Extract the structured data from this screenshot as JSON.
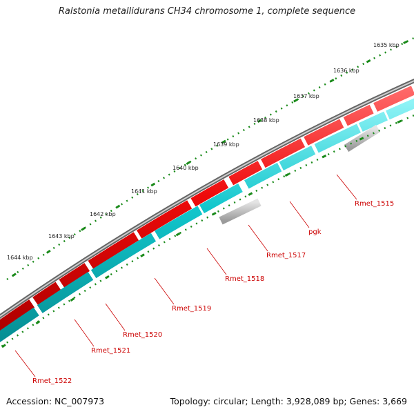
{
  "title": "Ralstonia metallidurans CH34 chromosome 1, complete sequence",
  "footer": {
    "accession": "Accession: NC_007973",
    "summary": "Topology: circular; Length: 3,928,089 bp; Genes: 3,669"
  },
  "colors": {
    "backbone": "#888888",
    "forward_cds": "#e8000b",
    "reverse_cds": "#00c5cc",
    "rna_or_other": "#bbbbbb",
    "tick": "#1a8a1a",
    "label": "#cc0000"
  },
  "scale_labels": [
    "1635 kbp",
    "1636 kbp",
    "1637 kbp",
    "1638 kbp",
    "1639 kbp",
    "1640 kbp",
    "1641 kbp",
    "1642 kbp",
    "1643 kbp",
    "1644 kbp"
  ],
  "gene_labels": [
    "Rmet_1515",
    "pgk",
    "Rmet_1517",
    "Rmet_1518",
    "Rmet_1519",
    "Rmet_1520",
    "Rmet_1521",
    "Rmet_1522"
  ]
}
